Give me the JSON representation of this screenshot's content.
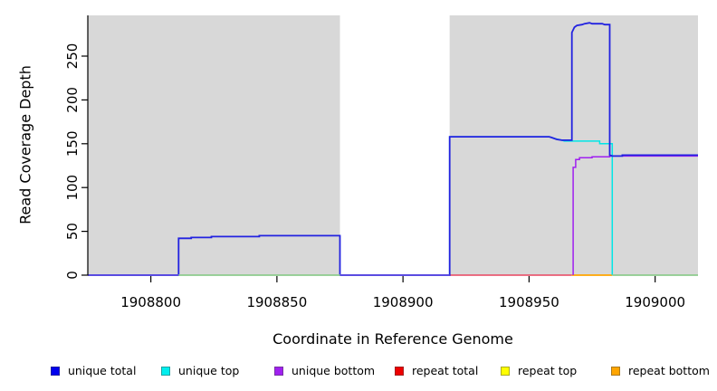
{
  "chart_data": {
    "type": "line",
    "title": "",
    "xlabel": "Coordinate in Reference Genome",
    "ylabel": "Read Coverage Depth",
    "x_ticks": [
      1908800,
      1908850,
      1908900,
      1908950,
      1909000
    ],
    "y_ticks": [
      0,
      50,
      100,
      150,
      200,
      250
    ],
    "xlim": [
      1908775,
      1909017
    ],
    "ylim": [
      0,
      296
    ],
    "grid": false,
    "background_bands": [
      {
        "x1": 1908775,
        "x2": 1908875
      },
      {
        "x1": 1908918.5,
        "x2": 1909017
      }
    ],
    "band_color": "#d8d8d8",
    "series": [
      {
        "name": "repeat top",
        "color": "#ffff00",
        "points": []
      },
      {
        "name": "repeat total",
        "color": "#e8445f",
        "points": [
          [
            1908918.5,
            0
          ],
          [
            1908967,
            0
          ]
        ]
      },
      {
        "name": "repeat bottom",
        "color": "#ffa500",
        "points": [
          [
            1908967,
            0
          ],
          [
            1908983,
            0
          ]
        ]
      },
      {
        "name": "unique top",
        "color": "#00e6e6",
        "points": [
          [
            1908918.5,
            0
          ],
          [
            1908918.5,
            158
          ],
          [
            1908958,
            158
          ],
          [
            1908960,
            156
          ],
          [
            1908963,
            154
          ],
          [
            1908964,
            153
          ],
          [
            1908978,
            153
          ],
          [
            1908978,
            150
          ],
          [
            1908983,
            150
          ],
          [
            1908983,
            0
          ]
        ]
      },
      {
        "name": "unique bottom",
        "color": "#a020f0",
        "points": [
          [
            1908967.5,
            0
          ],
          [
            1908967.5,
            123
          ],
          [
            1908968.5,
            123
          ],
          [
            1908968.5,
            132
          ],
          [
            1908970,
            132
          ],
          [
            1908970,
            134
          ],
          [
            1908975,
            134
          ],
          [
            1908975,
            135
          ],
          [
            1908982,
            135
          ],
          [
            1908982,
            136
          ],
          [
            1909017,
            136
          ]
        ]
      },
      {
        "name": "unique total",
        "color": "#2222e0",
        "points": [
          [
            1908775,
            0
          ],
          [
            1908811,
            0
          ],
          [
            1908811,
            42
          ],
          [
            1908816,
            42
          ],
          [
            1908816,
            43
          ],
          [
            1908824,
            43
          ],
          [
            1908824,
            44
          ],
          [
            1908843,
            44
          ],
          [
            1908843,
            45
          ],
          [
            1908875,
            45
          ],
          [
            1908875,
            0
          ],
          [
            1908918.5,
            0
          ],
          [
            1908918.5,
            158
          ],
          [
            1908958,
            158
          ],
          [
            1908959,
            157
          ],
          [
            1908961,
            155
          ],
          [
            1908963,
            154
          ],
          [
            1908967,
            154
          ],
          [
            1908967,
            277
          ],
          [
            1908968,
            283
          ],
          [
            1908969,
            285
          ],
          [
            1908971,
            286
          ],
          [
            1908972,
            287
          ],
          [
            1908974,
            288
          ],
          [
            1908975,
            287
          ],
          [
            1908979,
            287
          ],
          [
            1908980,
            286
          ],
          [
            1908982,
            286
          ],
          [
            1908982,
            137
          ],
          [
            1908983,
            136
          ],
          [
            1908987,
            136
          ],
          [
            1908987,
            137
          ],
          [
            1909017,
            137
          ]
        ]
      }
    ],
    "baseline_overlap_segments": [
      {
        "x1": 1908775,
        "x2": 1908811,
        "color": "#5a4ae0"
      },
      {
        "x1": 1908811,
        "x2": 1908875,
        "color": "#8ecb8e"
      },
      {
        "x1": 1908875,
        "x2": 1908918.5,
        "color": "#5a4ae0"
      },
      {
        "x1": 1908983,
        "x2": 1909017,
        "color": "#8ecb8e"
      }
    ]
  },
  "legend": {
    "items": [
      {
        "label": "unique total",
        "color": "#0000ee"
      },
      {
        "label": "unique top",
        "color": "#00eeee"
      },
      {
        "label": "unique bottom",
        "color": "#a020f0"
      },
      {
        "label": "repeat total",
        "color": "#ee0000"
      },
      {
        "label": "repeat top",
        "color": "#ffff00"
      },
      {
        "label": "repeat bottom",
        "color": "#ffa500"
      }
    ]
  }
}
